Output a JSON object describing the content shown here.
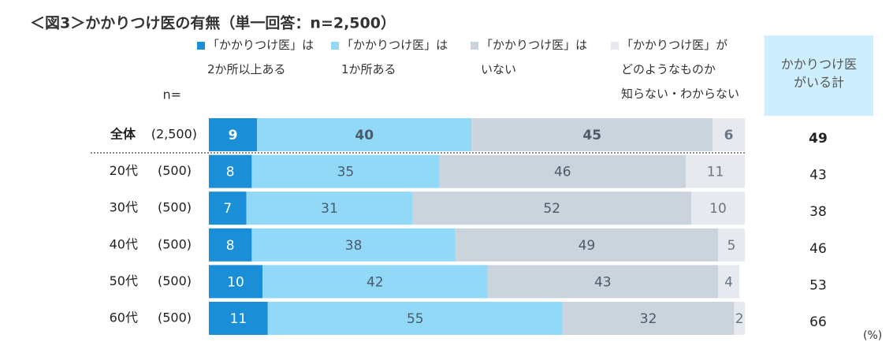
{
  "chart_data": {
    "type": "bar",
    "stacked": true,
    "horizontal": true,
    "title": "＜図3＞かかりつけ医の有無（単一回答：n=2,500）",
    "n_label": "n=",
    "unit_label": "(%)",
    "categories": [
      "全体",
      "20代",
      "30代",
      "40代",
      "50代",
      "60代"
    ],
    "sample_sizes": [
      "(2,500)",
      "(500)",
      "(500)",
      "(500)",
      "(500)",
      "(500)"
    ],
    "xlim": [
      0,
      100
    ],
    "series": [
      {
        "name": "「かかりつけ医」は\n2か所以上ある",
        "color": "#1a8fd8",
        "values": [
          9,
          8,
          7,
          8,
          10,
          11
        ]
      },
      {
        "name": "「かかりつけ医」は\n1か所ある",
        "color": "#92d9f8",
        "values": [
          40,
          35,
          31,
          38,
          42,
          55
        ]
      },
      {
        "name": "「かかりつけ医」は\nいない",
        "color": "#cbd3dd",
        "values": [
          45,
          46,
          52,
          49,
          43,
          32
        ]
      },
      {
        "name": "「かかりつけ医」が\nどのようなものか\n知らない・わからない",
        "color": "#e6eaee",
        "values": [
          6,
          11,
          10,
          5,
          4,
          2
        ]
      }
    ],
    "totals": {
      "name": "かかりつけ医\nがいる計",
      "values": [
        49,
        43,
        38,
        46,
        53,
        66
      ]
    }
  }
}
